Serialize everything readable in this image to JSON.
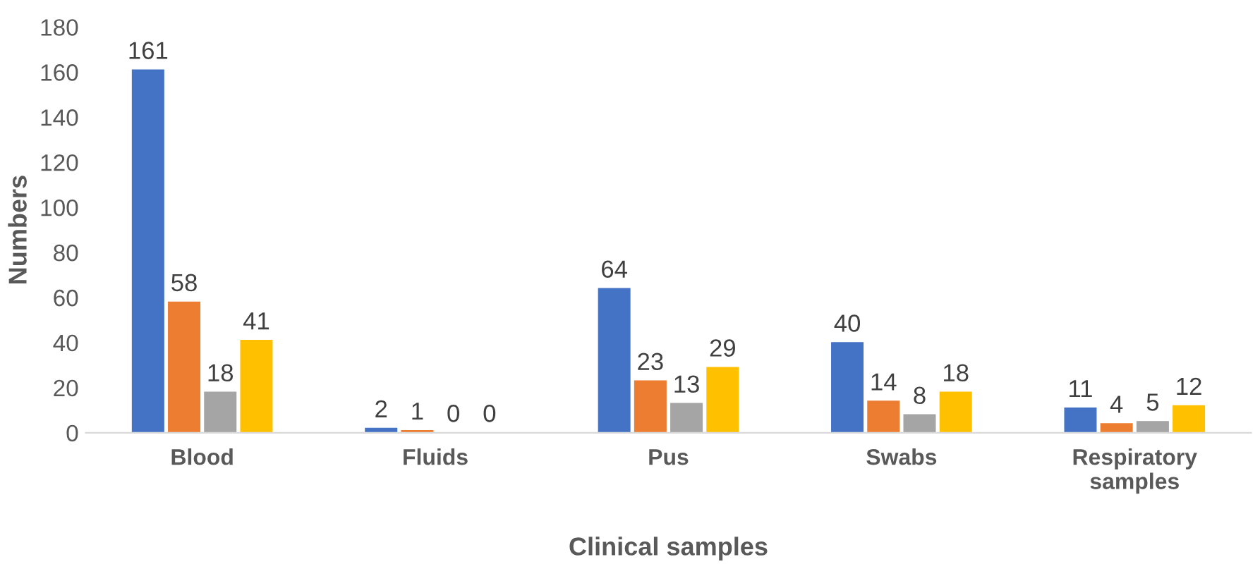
{
  "chart_data": {
    "type": "bar",
    "xlabel": "Clinical samples",
    "ylabel": "Numbers",
    "categories": [
      "Blood",
      "Fluids",
      "Pus",
      "Swabs",
      "Respiratory\nsamples"
    ],
    "series": [
      {
        "color": "#4472c4",
        "values": [
          161,
          2,
          64,
          40,
          11
        ]
      },
      {
        "color": "#ed7d31",
        "values": [
          58,
          1,
          23,
          14,
          4
        ]
      },
      {
        "color": "#a5a5a5",
        "values": [
          18,
          0,
          13,
          8,
          5
        ]
      },
      {
        "color": "#ffc000",
        "values": [
          41,
          0,
          29,
          18,
          12
        ]
      }
    ],
    "ylim": [
      0,
      180
    ],
    "yticks": [
      0,
      20,
      40,
      60,
      80,
      100,
      120,
      140,
      160,
      180
    ],
    "grid": false,
    "legend": false,
    "data_labels": true
  }
}
